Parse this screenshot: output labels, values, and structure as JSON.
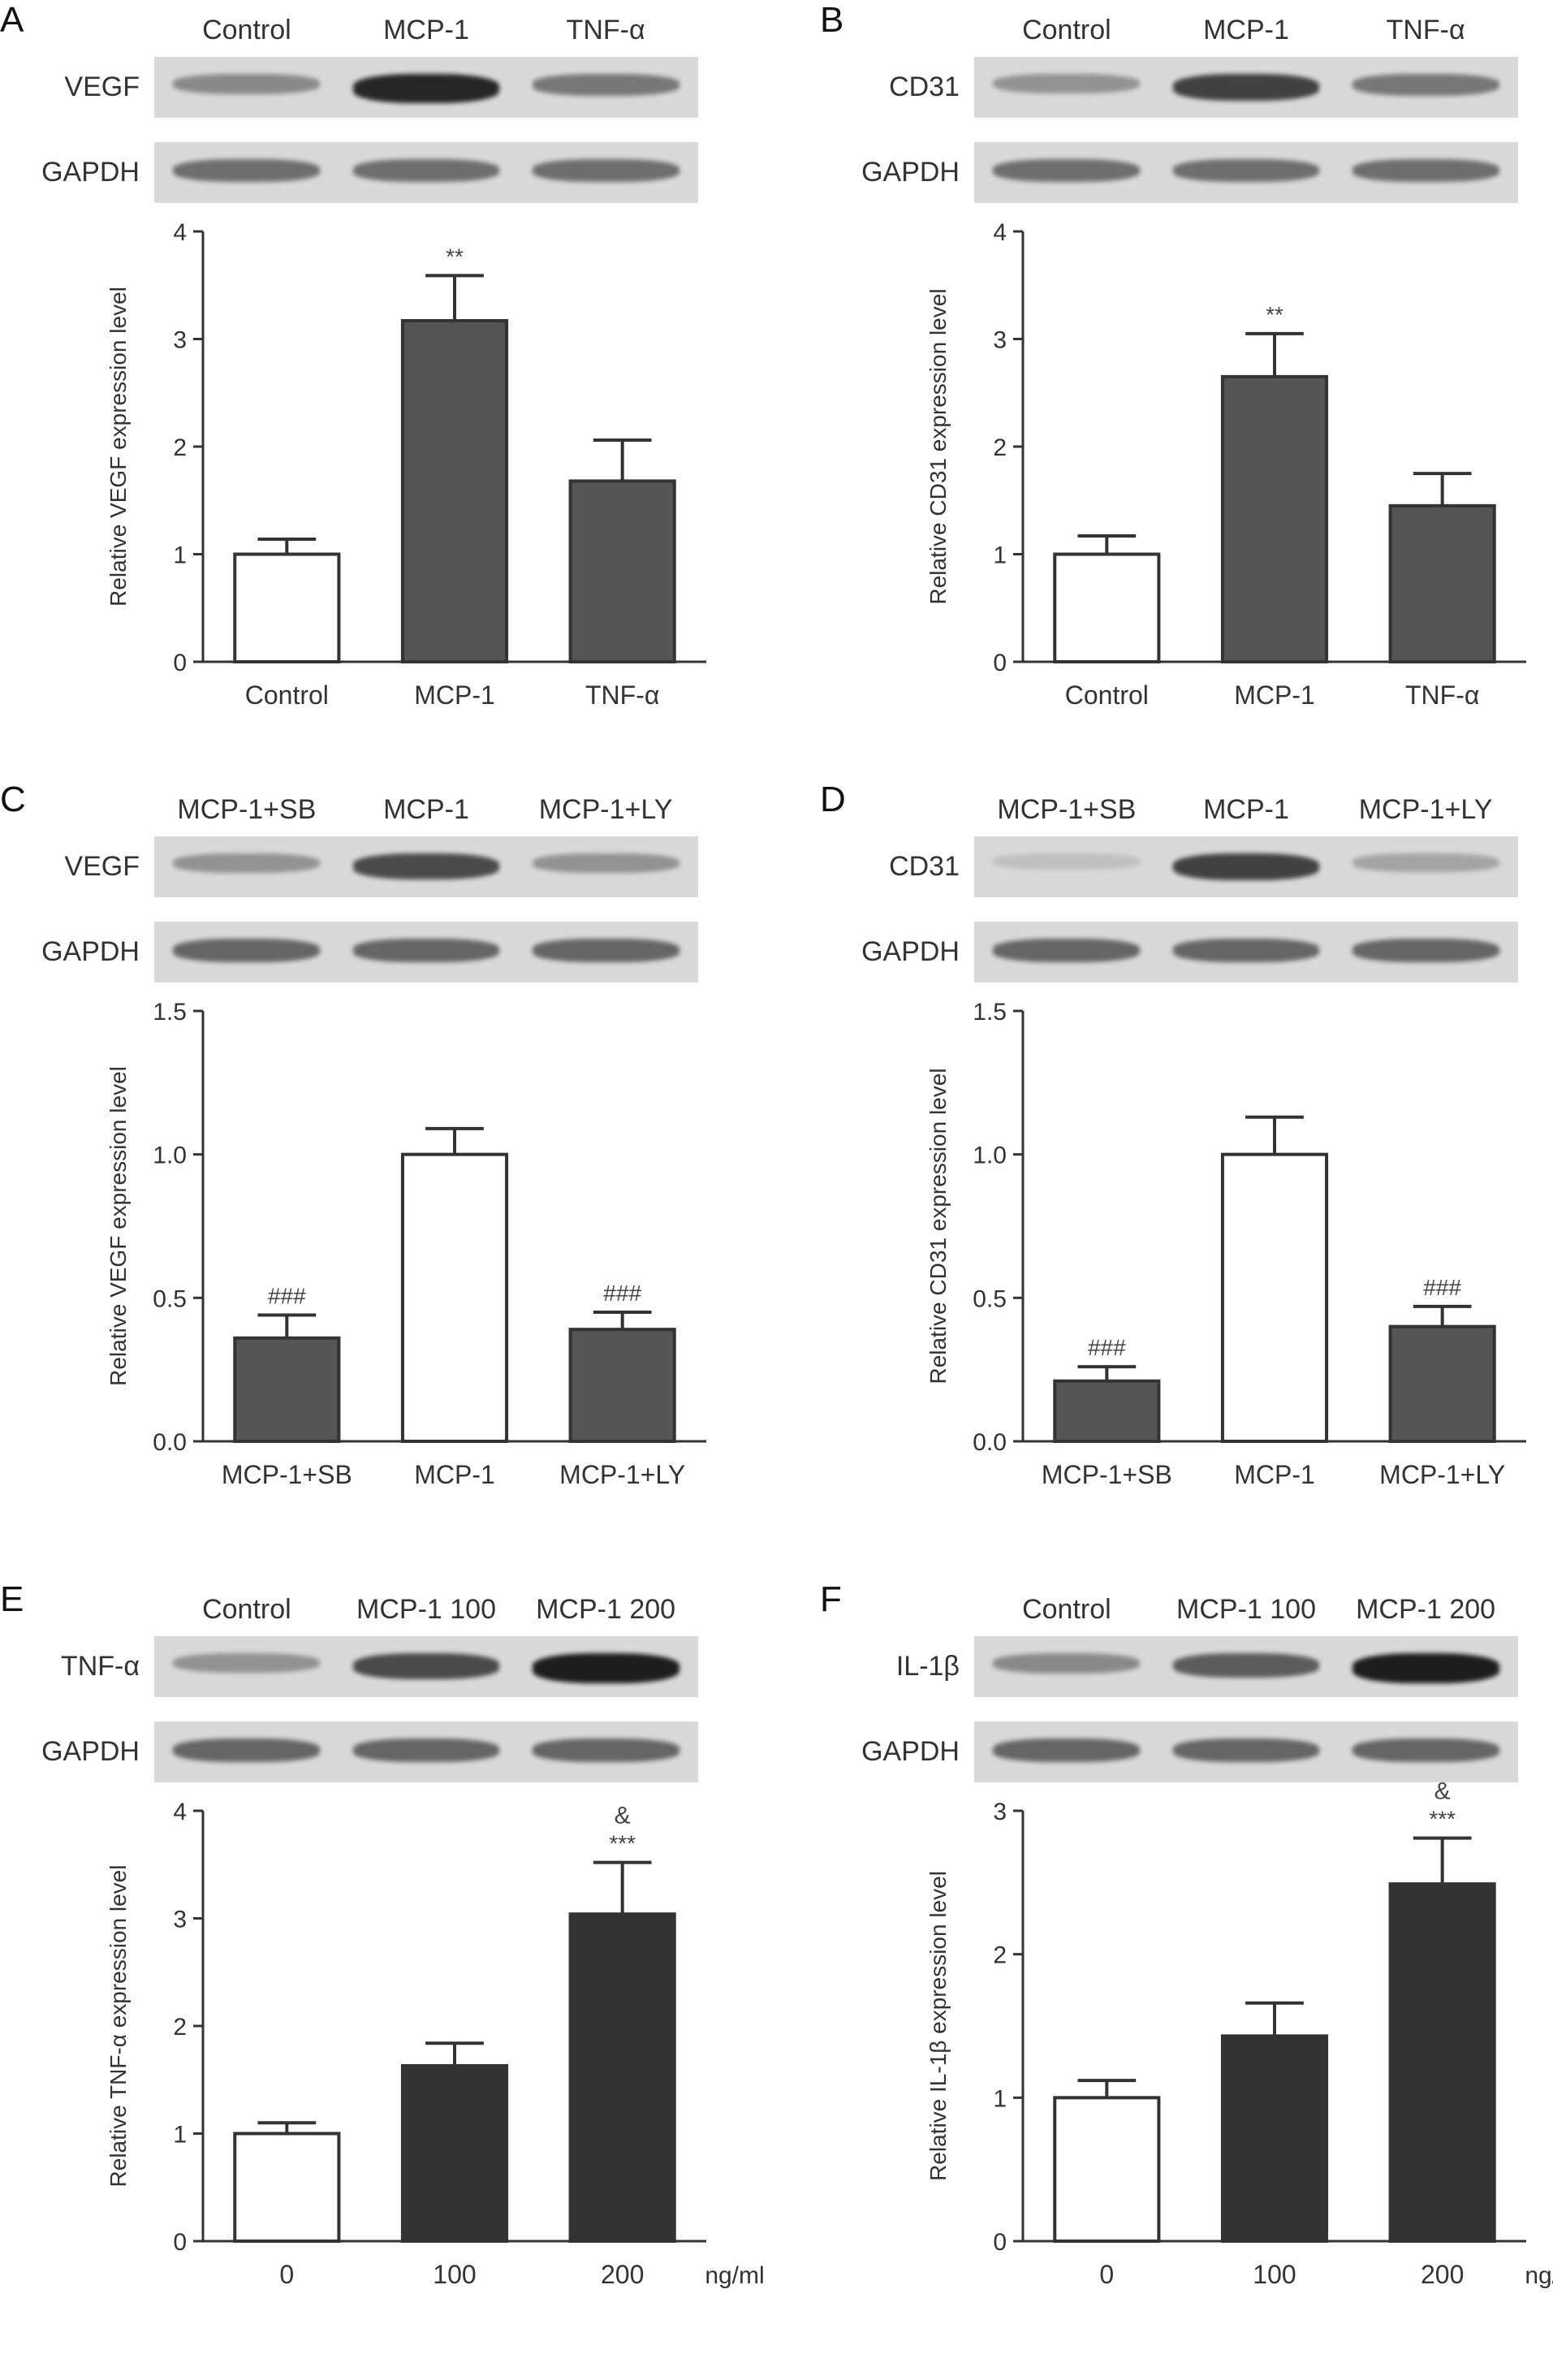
{
  "panels": [
    {
      "letter": "A",
      "blot": {
        "lanes": [
          "Control",
          "MCP-1",
          "TNF-α"
        ],
        "rows": [
          {
            "label": "VEGF",
            "intensity": [
              0.35,
              0.9,
              0.45
            ]
          },
          {
            "label": "GAPDH",
            "intensity": [
              0.5,
              0.5,
              0.5
            ]
          }
        ]
      },
      "chart": {
        "type": "bar",
        "categories": [
          "Control",
          "MCP-1",
          "TNF-α"
        ],
        "values": [
          1.0,
          3.17,
          1.68
        ],
        "errors": [
          0.14,
          0.42,
          0.38
        ],
        "fills": [
          "#ffffff",
          "#555555",
          "#555555"
        ],
        "annotations": [
          [
            "",
            ""
          ],
          [
            "**",
            ""
          ],
          [
            "",
            ""
          ]
        ],
        "ylabel": "Relative VEGF expression level",
        "ylim": [
          0,
          4
        ],
        "yticks": [
          "0",
          "1",
          "2",
          "3",
          "4"
        ],
        "tickvals": [
          0,
          1,
          2,
          3,
          4
        ],
        "unit": ""
      }
    },
    {
      "letter": "B",
      "blot": {
        "lanes": [
          "Control",
          "MCP-1",
          "TNF-α"
        ],
        "rows": [
          {
            "label": "CD31",
            "intensity": [
              0.3,
              0.75,
              0.45
            ]
          },
          {
            "label": "GAPDH",
            "intensity": [
              0.5,
              0.5,
              0.5
            ]
          }
        ]
      },
      "chart": {
        "type": "bar",
        "categories": [
          "Control",
          "MCP-1",
          "TNF-α"
        ],
        "values": [
          1.0,
          2.65,
          1.45
        ],
        "errors": [
          0.17,
          0.4,
          0.3
        ],
        "fills": [
          "#ffffff",
          "#555555",
          "#555555"
        ],
        "annotations": [
          [
            "",
            ""
          ],
          [
            "**",
            ""
          ],
          [
            "",
            ""
          ]
        ],
        "ylabel": "Relative CD31 expression level",
        "ylim": [
          0,
          4
        ],
        "yticks": [
          "0",
          "1",
          "2",
          "3",
          "4"
        ],
        "tickvals": [
          0,
          1,
          2,
          3,
          4
        ],
        "unit": ""
      }
    },
    {
      "letter": "C",
      "blot": {
        "lanes": [
          "MCP-1+SB",
          "MCP-1",
          "MCP-1+LY"
        ],
        "rows": [
          {
            "label": "VEGF",
            "intensity": [
              0.3,
              0.7,
              0.3
            ]
          },
          {
            "label": "GAPDH",
            "intensity": [
              0.55,
              0.55,
              0.55
            ]
          }
        ]
      },
      "chart": {
        "type": "bar",
        "categories": [
          "MCP-1+SB",
          "MCP-1",
          "MCP-1+LY"
        ],
        "values": [
          0.36,
          1.0,
          0.39
        ],
        "errors": [
          0.08,
          0.09,
          0.06
        ],
        "fills": [
          "#555555",
          "#ffffff",
          "#555555"
        ],
        "annotations": [
          [
            "###",
            ""
          ],
          [
            "",
            ""
          ],
          [
            "###",
            ""
          ]
        ],
        "ylabel": "Relative VEGF expression level",
        "ylim": [
          0,
          1.5
        ],
        "yticks": [
          "0.0",
          "0.5",
          "1.0",
          "1.5"
        ],
        "tickvals": [
          0,
          0.5,
          1.0,
          1.5
        ],
        "unit": ""
      }
    },
    {
      "letter": "D",
      "blot": {
        "lanes": [
          "MCP-1+SB",
          "MCP-1",
          "MCP-1+LY"
        ],
        "rows": [
          {
            "label": "CD31",
            "intensity": [
              0.05,
              0.75,
              0.2
            ]
          },
          {
            "label": "GAPDH",
            "intensity": [
              0.55,
              0.55,
              0.55
            ]
          }
        ]
      },
      "chart": {
        "type": "bar",
        "categories": [
          "MCP-1+SB",
          "MCP-1",
          "MCP-1+LY"
        ],
        "values": [
          0.21,
          1.0,
          0.4
        ],
        "errors": [
          0.05,
          0.13,
          0.07
        ],
        "fills": [
          "#555555",
          "#ffffff",
          "#555555"
        ],
        "annotations": [
          [
            "###",
            ""
          ],
          [
            "",
            ""
          ],
          [
            "###",
            ""
          ]
        ],
        "ylabel": "Relative CD31 expression level",
        "ylim": [
          0,
          1.5
        ],
        "yticks": [
          "0.0",
          "0.5",
          "1.0",
          "1.5"
        ],
        "tickvals": [
          0,
          0.5,
          1.0,
          1.5
        ],
        "unit": ""
      }
    },
    {
      "letter": "E",
      "blot": {
        "lanes": [
          "Control",
          "MCP-1 100",
          "MCP-1 200"
        ],
        "rows": [
          {
            "label": "TNF-α",
            "intensity": [
              0.3,
              0.7,
              0.95
            ]
          },
          {
            "label": "GAPDH",
            "intensity": [
              0.55,
              0.55,
              0.55
            ]
          }
        ]
      },
      "chart": {
        "type": "bar",
        "categories": [
          "0",
          "100",
          "200"
        ],
        "values": [
          1.0,
          1.63,
          3.04
        ],
        "errors": [
          0.1,
          0.21,
          0.48
        ],
        "fills": [
          "#ffffff",
          "#333333",
          "#333333"
        ],
        "annotations": [
          [
            "",
            ""
          ],
          [
            "",
            ""
          ],
          [
            "***",
            "&"
          ]
        ],
        "ylabel": "Relative TNF-α expression level",
        "ylim": [
          0,
          4
        ],
        "yticks": [
          "0",
          "1",
          "2",
          "3",
          "4"
        ],
        "tickvals": [
          0,
          1,
          2,
          3,
          4
        ],
        "unit": "ng/ml"
      }
    },
    {
      "letter": "F",
      "blot": {
        "lanes": [
          "Control",
          "MCP-1 100",
          "MCP-1 200"
        ],
        "rows": [
          {
            "label": "IL-1β",
            "intensity": [
              0.35,
              0.6,
              0.95
            ]
          },
          {
            "label": "GAPDH",
            "intensity": [
              0.55,
              0.55,
              0.55
            ]
          }
        ]
      },
      "chart": {
        "type": "bar",
        "categories": [
          "0",
          "100",
          "200"
        ],
        "values": [
          1.0,
          1.43,
          2.49
        ],
        "errors": [
          0.12,
          0.23,
          0.32
        ],
        "fills": [
          "#ffffff",
          "#333333",
          "#333333"
        ],
        "annotations": [
          [
            "",
            ""
          ],
          [
            "",
            ""
          ],
          [
            "***",
            "&"
          ]
        ],
        "ylabel": "Relative IL-1β expression level",
        "ylim": [
          0,
          3
        ],
        "yticks": [
          "0",
          "1",
          "2",
          "3"
        ],
        "tickvals": [
          0,
          1,
          2,
          3
        ],
        "unit": "ng/ml"
      }
    }
  ]
}
